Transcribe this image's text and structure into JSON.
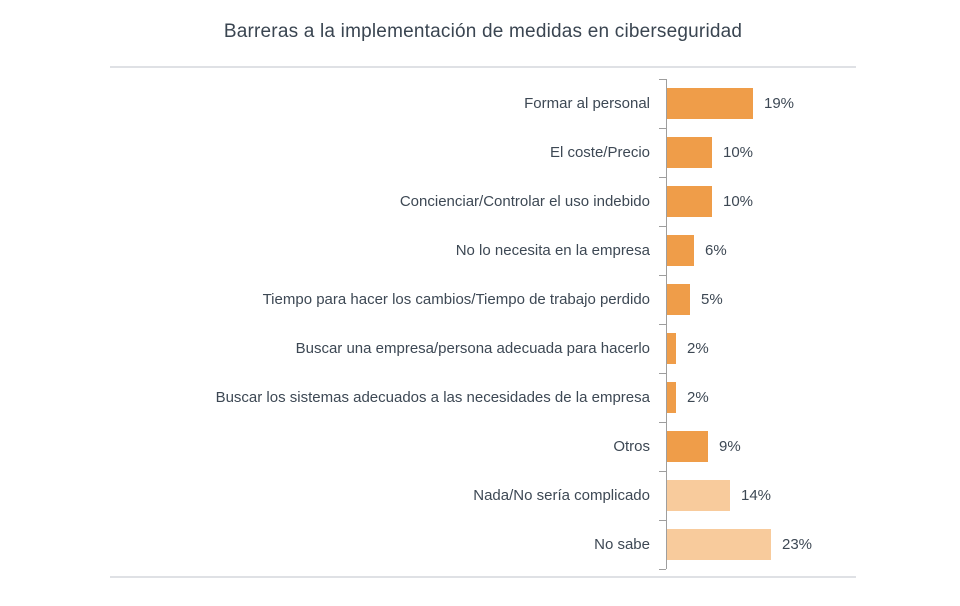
{
  "title": "Barreras a la implementación de medidas en ciberseguridad",
  "colors": {
    "bar_primary": "#ef9d49",
    "bar_secondary": "#f8cb9c",
    "axis": "#9e9e9e",
    "divider": "#dfe1e5",
    "text": "#3d4854",
    "title_text": "#3a4551"
  },
  "chart_data": {
    "type": "bar",
    "orientation": "horizontal",
    "title": "Barreras a la implementación de medidas en ciberseguridad",
    "categories": [
      "Formar al personal",
      "El coste/Precio",
      "Concienciar/Controlar el uso indebido",
      "No lo necesita en la empresa",
      "Tiempo para hacer los cambios/Tiempo de trabajo perdido",
      "Buscar una empresa/persona adecuada para hacerlo",
      "Buscar los sistemas adecuados a las necesidades de la empresa",
      "Otros",
      "Nada/No sería complicado",
      "No sabe"
    ],
    "values": [
      19,
      10,
      10,
      6,
      5,
      2,
      2,
      9,
      14,
      23
    ],
    "value_labels": [
      "19%",
      "10%",
      "10%",
      "6%",
      "5%",
      "2%",
      "2%",
      "9%",
      "14%",
      "23%"
    ],
    "bar_color_keys": [
      "bar_primary",
      "bar_primary",
      "bar_primary",
      "bar_primary",
      "bar_primary",
      "bar_primary",
      "bar_primary",
      "bar_primary",
      "bar_secondary",
      "bar_secondary"
    ],
    "xlabel": "",
    "ylabel": "",
    "xlim": [
      0,
      25
    ],
    "grid": "off",
    "legend": "none",
    "data_labels": "outside-end"
  }
}
